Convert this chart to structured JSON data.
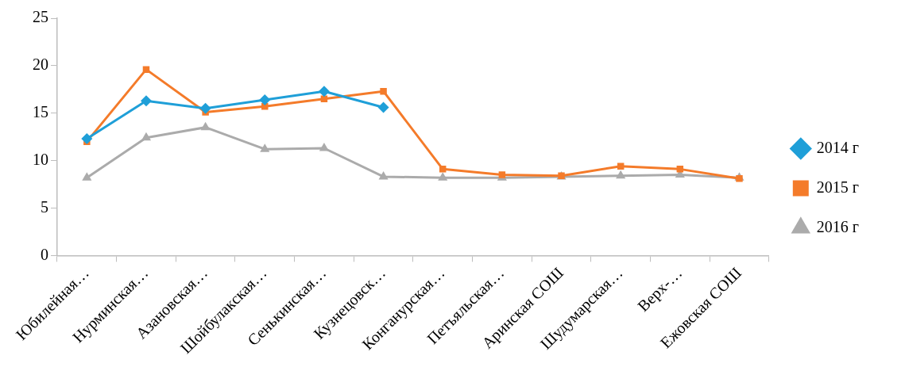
{
  "chart_data": {
    "type": "line",
    "categories": [
      "Юбилейная…",
      "Нурминская…",
      "Азановская…",
      "Шойбулакская…",
      "Сенькинская…",
      "Кузнецовск…",
      "Конганурская…",
      "Петъяльская…",
      "Аринская СОШ",
      "Шудумарская…",
      "Верх-…",
      "Ежовская СОШ"
    ],
    "series": [
      {
        "name": "2014 г",
        "color": "#1f9fd8",
        "marker": "diamond",
        "values": [
          12.3,
          16.3,
          15.5,
          16.4,
          17.3,
          15.6,
          null,
          null,
          null,
          null,
          null,
          null
        ]
      },
      {
        "name": "2015 г",
        "color": "#f47b2a",
        "marker": "square",
        "values": [
          12.0,
          19.6,
          15.1,
          15.7,
          16.5,
          17.3,
          9.1,
          8.5,
          8.4,
          9.4,
          9.1,
          8.1
        ]
      },
      {
        "name": "2016 г",
        "color": "#ababab",
        "marker": "triangle",
        "values": [
          8.2,
          12.4,
          13.5,
          11.2,
          11.3,
          8.3,
          8.2,
          8.2,
          8.3,
          8.4,
          8.5,
          8.2
        ]
      }
    ],
    "ylim": [
      0,
      25
    ],
    "yticks": [
      0,
      5,
      10,
      15,
      20,
      25
    ],
    "grid": false,
    "legend": "right"
  }
}
